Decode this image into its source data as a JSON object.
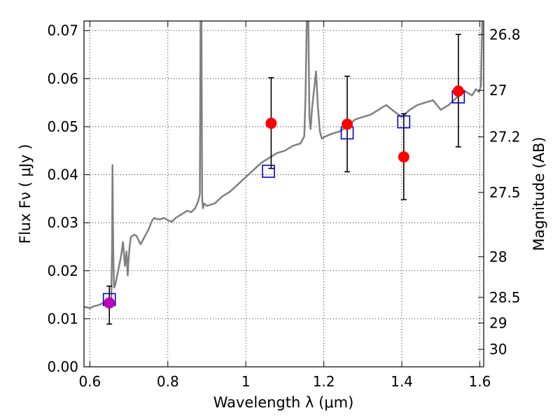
{
  "chart_data": {
    "type": "scatter",
    "xlabel": "Wavelength  λ (μm)",
    "ylabel": "Flux  Fν  ( μJy )",
    "y2label": "Magnitude (AB)",
    "xlim": [
      0.585,
      1.61
    ],
    "ylim": [
      0.0,
      0.072
    ],
    "grid": true,
    "x_ticks": [
      {
        "value": 0.6,
        "label": "0.6"
      },
      {
        "value": 0.8,
        "label": "0.8"
      },
      {
        "value": 1.0,
        "label": "1"
      },
      {
        "value": 1.2,
        "label": "1.2"
      },
      {
        "value": 1.4,
        "label": "1.4"
      },
      {
        "value": 1.6,
        "label": "1.6"
      }
    ],
    "y_ticks": [
      {
        "value": 0.0,
        "label": "0.00"
      },
      {
        "value": 0.01,
        "label": "0.01"
      },
      {
        "value": 0.02,
        "label": "0.02"
      },
      {
        "value": 0.03,
        "label": "0.03"
      },
      {
        "value": 0.04,
        "label": "0.04"
      },
      {
        "value": 0.05,
        "label": "0.05"
      },
      {
        "value": 0.06,
        "label": "0.06"
      },
      {
        "value": 0.07,
        "label": "0.07"
      }
    ],
    "mag_ticks": [
      {
        "value": 26.8,
        "label": "26.8"
      },
      {
        "value": 27.0,
        "label": "27"
      },
      {
        "value": 27.2,
        "label": "27.2"
      },
      {
        "value": 27.5,
        "label": "27.5"
      },
      {
        "value": 28.0,
        "label": "28"
      },
      {
        "value": 28.5,
        "label": "28.5"
      },
      {
        "value": 29.0,
        "label": "29"
      },
      {
        "value": 30.0,
        "label": "30"
      }
    ],
    "template_spectrum": {
      "color": "#808080",
      "x": [
        0.585,
        0.6,
        0.61,
        0.62,
        0.63,
        0.64,
        0.648,
        0.652,
        0.655,
        0.657,
        0.658,
        0.66,
        0.662,
        0.665,
        0.67,
        0.675,
        0.68,
        0.685,
        0.69,
        0.694,
        0.697,
        0.699,
        0.702,
        0.705,
        0.71,
        0.715,
        0.72,
        0.73,
        0.74,
        0.75,
        0.755,
        0.76,
        0.765,
        0.77,
        0.78,
        0.79,
        0.8,
        0.81,
        0.82,
        0.83,
        0.84,
        0.85,
        0.86,
        0.87,
        0.878,
        0.882,
        0.884,
        0.886,
        0.888,
        0.89,
        0.893,
        0.9,
        0.92,
        0.94,
        0.96,
        0.98,
        1.0,
        1.02,
        1.04,
        1.06,
        1.08,
        1.1,
        1.12,
        1.14,
        1.15,
        1.153,
        1.157,
        1.16,
        1.163,
        1.166,
        1.17,
        1.18,
        1.185,
        1.19,
        1.195,
        1.2,
        1.22,
        1.24,
        1.26,
        1.28,
        1.3,
        1.32,
        1.34,
        1.36,
        1.38,
        1.4,
        1.42,
        1.44,
        1.46,
        1.48,
        1.5,
        1.52,
        1.54,
        1.56,
        1.58,
        1.59,
        1.598,
        1.603,
        1.607,
        1.61
      ],
      "y": [
        0.0125,
        0.0122,
        0.0126,
        0.0128,
        0.0131,
        0.0135,
        0.0136,
        0.0138,
        0.0142,
        0.025,
        0.042,
        0.024,
        0.0165,
        0.017,
        0.019,
        0.021,
        0.023,
        0.026,
        0.021,
        0.024,
        0.019,
        0.022,
        0.025,
        0.027,
        0.0273,
        0.0275,
        0.0272,
        0.0255,
        0.027,
        0.0285,
        0.0295,
        0.0305,
        0.031,
        0.0308,
        0.0307,
        0.031,
        0.0305,
        0.0302,
        0.031,
        0.0315,
        0.032,
        0.0325,
        0.0322,
        0.033,
        0.0345,
        0.036,
        0.075,
        0.075,
        0.035,
        0.033,
        0.034,
        0.0335,
        0.034,
        0.0355,
        0.0365,
        0.038,
        0.0395,
        0.041,
        0.0425,
        0.0435,
        0.0445,
        0.045,
        0.046,
        0.0465,
        0.048,
        0.056,
        0.075,
        0.075,
        0.052,
        0.0495,
        0.054,
        0.0615,
        0.054,
        0.049,
        0.0475,
        0.0478,
        0.0485,
        0.049,
        0.05,
        0.0515,
        0.052,
        0.0525,
        0.0535,
        0.0545,
        0.0532,
        0.052,
        0.0535,
        0.0545,
        0.055,
        0.0555,
        0.0535,
        0.0545,
        0.056,
        0.0575,
        0.0565,
        0.0578,
        0.0572,
        0.0585,
        0.0745,
        0.075
      ]
    },
    "observed": [
      {
        "x": 0.65,
        "y": 0.0133,
        "err": [
          0.0089,
          0.0168
        ],
        "color": "#bf00bf"
      },
      {
        "x": 1.065,
        "y": 0.0507,
        "err": [
          0.0413,
          0.0602
        ],
        "color": "#ff0000"
      },
      {
        "x": 1.26,
        "y": 0.0505,
        "err": [
          0.0406,
          0.0605
        ],
        "color": "#ff0000"
      },
      {
        "x": 1.405,
        "y": 0.0437,
        "err": [
          0.0348,
          0.0527
        ],
        "color": "#ff0000"
      },
      {
        "x": 1.545,
        "y": 0.0574,
        "err": [
          0.0458,
          0.0692
        ],
        "color": "#ff0000"
      }
    ],
    "model": {
      "color": "#0000cc",
      "points": [
        {
          "x": 0.65,
          "y": 0.014
        },
        {
          "x": 1.058,
          "y": 0.0407
        },
        {
          "x": 1.26,
          "y": 0.0487
        },
        {
          "x": 1.405,
          "y": 0.051
        },
        {
          "x": 1.545,
          "y": 0.0562
        }
      ]
    }
  }
}
